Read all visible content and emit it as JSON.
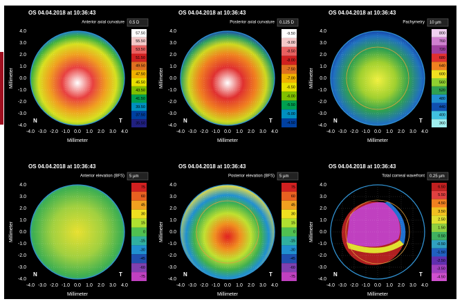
{
  "panels": [
    {
      "title": "OS 04.04.2018 at 10:36:43",
      "map": "Anterior axial curvature",
      "step": "0.5 D",
      "scale": [
        "57.50",
        "55.50",
        "53.50",
        "51.50",
        "49.50",
        "47.50",
        "45.50",
        "43.50",
        "41.50",
        "39.50",
        "37.50",
        "35.50"
      ]
    },
    {
      "title": "OS 04.04.2018 at 10:36:43",
      "map": "Posterior axial curvature",
      "step": "0.125 D",
      "scale": [
        "-9.50",
        "-9.00",
        "-8.50",
        "-8.00",
        "-7.50",
        "-7.00",
        "-6.50",
        "-6.00",
        "-5.50",
        "-5.00",
        "-4.50"
      ]
    },
    {
      "title": "OS 04.04.2018 at 10:36:43",
      "map": "Pachymetry",
      "step": "10 µm",
      "scale": [
        "800",
        "760",
        "720",
        "680",
        "640",
        "600",
        "560",
        "520",
        "480",
        "440",
        "400",
        "360"
      ]
    },
    {
      "title": "OS 04.04.2018 at 10:36:43",
      "map": "Anterior elevation (BFS)",
      "step": "5 µm",
      "scale": [
        "75",
        "60",
        "45",
        "30",
        "15",
        "0",
        "-15",
        "-30",
        "-45",
        "-60",
        "-75"
      ]
    },
    {
      "title": "OS 04.04.2018 at 10:36:43",
      "map": "Posterior elevation (BFS)",
      "step": "5 µm",
      "scale": [
        "75",
        "60",
        "45",
        "30",
        "15",
        "0",
        "-15",
        "-30",
        "-45",
        "-60",
        "-75"
      ]
    },
    {
      "title": "OS 04.04.2018 at 10:36:43",
      "map": "Total corneal wavefront",
      "step": "0.25 µm",
      "scale": [
        "6.50",
        "5.50",
        "4.50",
        "3.50",
        "2.50",
        "1.50",
        "0.50",
        "-0.50",
        "-1.50",
        "-2.50",
        "-3.50",
        "-4.50"
      ]
    }
  ],
  "axes": {
    "y_ticks": [
      "4.0",
      "3.0",
      "2.0",
      "1.0",
      "0.0",
      "-1.0",
      "-2.0",
      "-3.0",
      "-4.0"
    ],
    "x_ticks": [
      "-4.0",
      "-3.0",
      "-2.0",
      "-1.0",
      "0.0",
      "1.0",
      "2.0",
      "3.0",
      "4.0"
    ],
    "label": "Millimeter",
    "nasal": "N",
    "temporal": "T"
  }
}
